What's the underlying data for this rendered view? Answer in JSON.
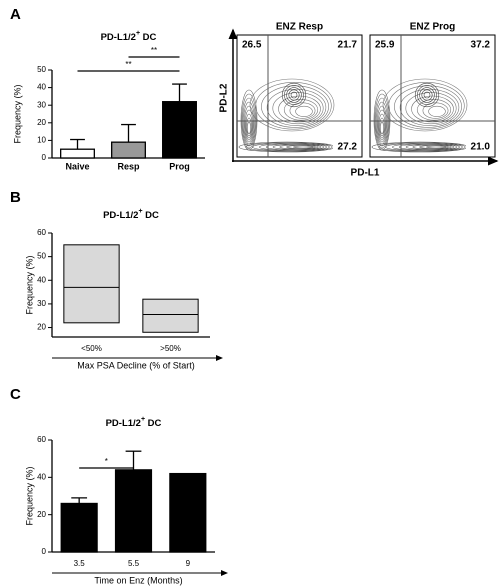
{
  "chart_data": [
    {
      "type": "bar",
      "panel": "A",
      "title": "PD-L1/2+ DC",
      "y_label": "Frequency (%)",
      "categories": [
        "Naive",
        "Resp",
        "Prog"
      ],
      "values": [
        5,
        9,
        32
      ],
      "errors": [
        5.5,
        10,
        10
      ],
      "colors": [
        "#ffffff",
        "#999999",
        "#000000"
      ],
      "ylim": [
        0,
        50
      ],
      "yticks": [
        0,
        10,
        20,
        30,
        40,
        50
      ],
      "annotations": [
        {
          "text": "**",
          "from": "Naive",
          "to": "Prog"
        },
        {
          "text": "**",
          "from": "Resp",
          "to": "Prog"
        }
      ]
    },
    {
      "type": "box",
      "panel": "B",
      "title": "PD-L1/2+ DC",
      "y_label": "Frequency (%)",
      "x_label": "Max PSA Decline (% of Start)",
      "categories": [
        "<50%",
        ">50%"
      ],
      "low": [
        22,
        18
      ],
      "median": [
        37,
        25.5
      ],
      "high": [
        55,
        32
      ],
      "color": "#d9d9d9",
      "ylim": [
        16,
        60
      ],
      "yticks": [
        20,
        30,
        40,
        50,
        60
      ]
    },
    {
      "type": "bar",
      "panel": "C",
      "title": "PD-L1/2+ DC",
      "y_label": "Frequency (%)",
      "x_label": "Time on Enz (Months)",
      "categories": [
        "3.5",
        "5.5",
        "9"
      ],
      "values": [
        26,
        44,
        42
      ],
      "errors": [
        3,
        10,
        null
      ],
      "colors": [
        "#000000",
        "#000000",
        "#000000"
      ],
      "ylim": [
        0,
        60
      ],
      "yticks": [
        0,
        20,
        40,
        60
      ],
      "annotations": [
        {
          "text": "*",
          "from": "3.5",
          "to": "5.5"
        }
      ]
    }
  ],
  "flow_cytometry": {
    "x_label": "PD-L1",
    "y_label": "PD-L2",
    "plots": [
      {
        "title": "ENZ Resp",
        "upper_left": 26.5,
        "upper_right": 21.7,
        "lower_right": 27.2
      },
      {
        "title": "ENZ Prog",
        "upper_left": 25.9,
        "upper_right": 37.2,
        "lower_right": 21.0
      }
    ]
  }
}
